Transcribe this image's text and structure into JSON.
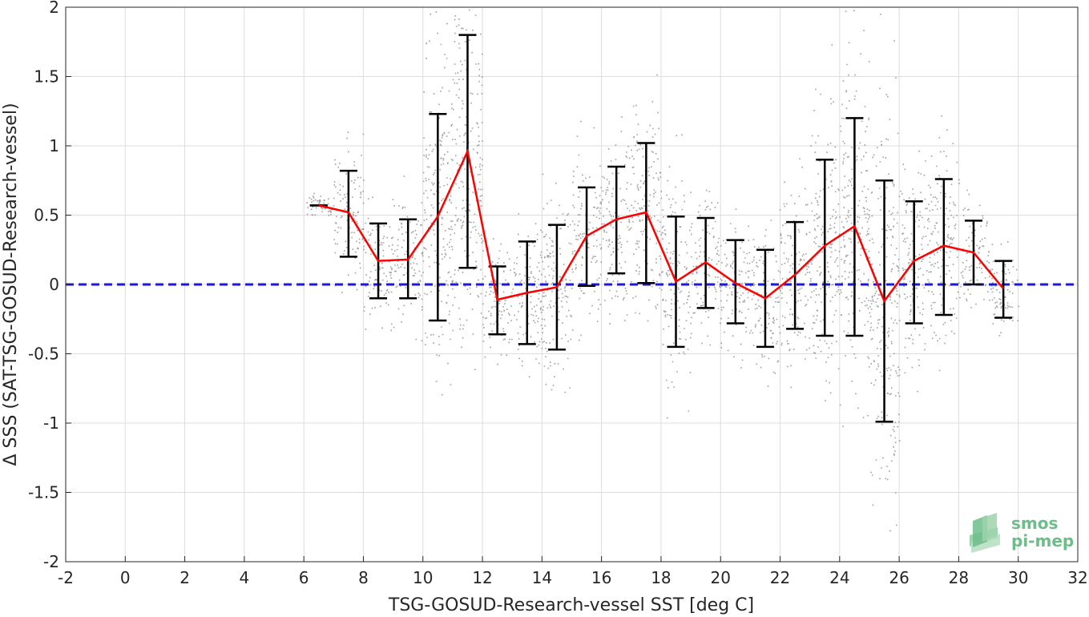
{
  "chart_data": {
    "type": "scatter",
    "title": "",
    "xlabel": "TSG-GOSUD-Research-vessel SST [deg C]",
    "ylabel": "Δ SSS (SAT-TSG-GOSUD-Research-vessel)",
    "xlim": [
      -2,
      32
    ],
    "ylim": [
      -2,
      2
    ],
    "xticks": [
      -2,
      0,
      2,
      4,
      6,
      8,
      10,
      12,
      14,
      16,
      18,
      20,
      22,
      24,
      26,
      28,
      30,
      32
    ],
    "yticks": [
      -2,
      -1.5,
      -1,
      -0.5,
      0,
      0.5,
      1,
      1.5,
      2
    ],
    "xtick_labels": [
      "-2",
      "0",
      "2",
      "4",
      "6",
      "8",
      "10",
      "12",
      "14",
      "16",
      "18",
      "20",
      "22",
      "24",
      "26",
      "28",
      "30",
      "32"
    ],
    "ytick_labels": [
      "-2",
      "-1.5",
      "-1",
      "-0.5",
      "0",
      "0.5",
      "1",
      "1.5",
      "2"
    ],
    "grid": true,
    "reference_line": {
      "y": 0,
      "style": "dashed",
      "color": "#1a1adb"
    },
    "binned_mean": {
      "color": "#ff0000",
      "x": [
        6.5,
        7.5,
        8.5,
        9.5,
        10.5,
        11.5,
        12.5,
        13.5,
        14.5,
        15.5,
        16.5,
        17.5,
        18.5,
        19.5,
        20.5,
        21.5,
        22.5,
        23.5,
        24.5,
        25.5,
        26.5,
        27.5,
        28.5,
        29.5
      ],
      "y": [
        0.57,
        0.52,
        0.17,
        0.18,
        0.49,
        0.96,
        -0.11,
        -0.06,
        -0.02,
        0.35,
        0.47,
        0.52,
        0.02,
        0.16,
        0.01,
        -0.1,
        0.07,
        0.28,
        0.42,
        -0.12,
        0.17,
        0.28,
        0.23,
        -0.03
      ],
      "err_low": [
        0.57,
        0.2,
        -0.1,
        -0.1,
        -0.26,
        0.12,
        -0.36,
        -0.43,
        -0.47,
        -0.01,
        0.08,
        0.01,
        -0.45,
        -0.17,
        -0.28,
        -0.45,
        -0.32,
        -0.37,
        -0.37,
        -0.99,
        -0.28,
        -0.22,
        0.0,
        -0.24
      ],
      "err_high": [
        0.57,
        0.82,
        0.44,
        0.47,
        1.23,
        1.8,
        0.13,
        0.31,
        0.43,
        0.7,
        0.85,
        1.02,
        0.49,
        0.48,
        0.32,
        0.25,
        0.45,
        0.9,
        1.2,
        0.75,
        0.6,
        0.76,
        0.46,
        0.17
      ]
    },
    "scatter_color": "#808080"
  },
  "logo": {
    "line1": "smos",
    "line2": "pi-mep"
  }
}
